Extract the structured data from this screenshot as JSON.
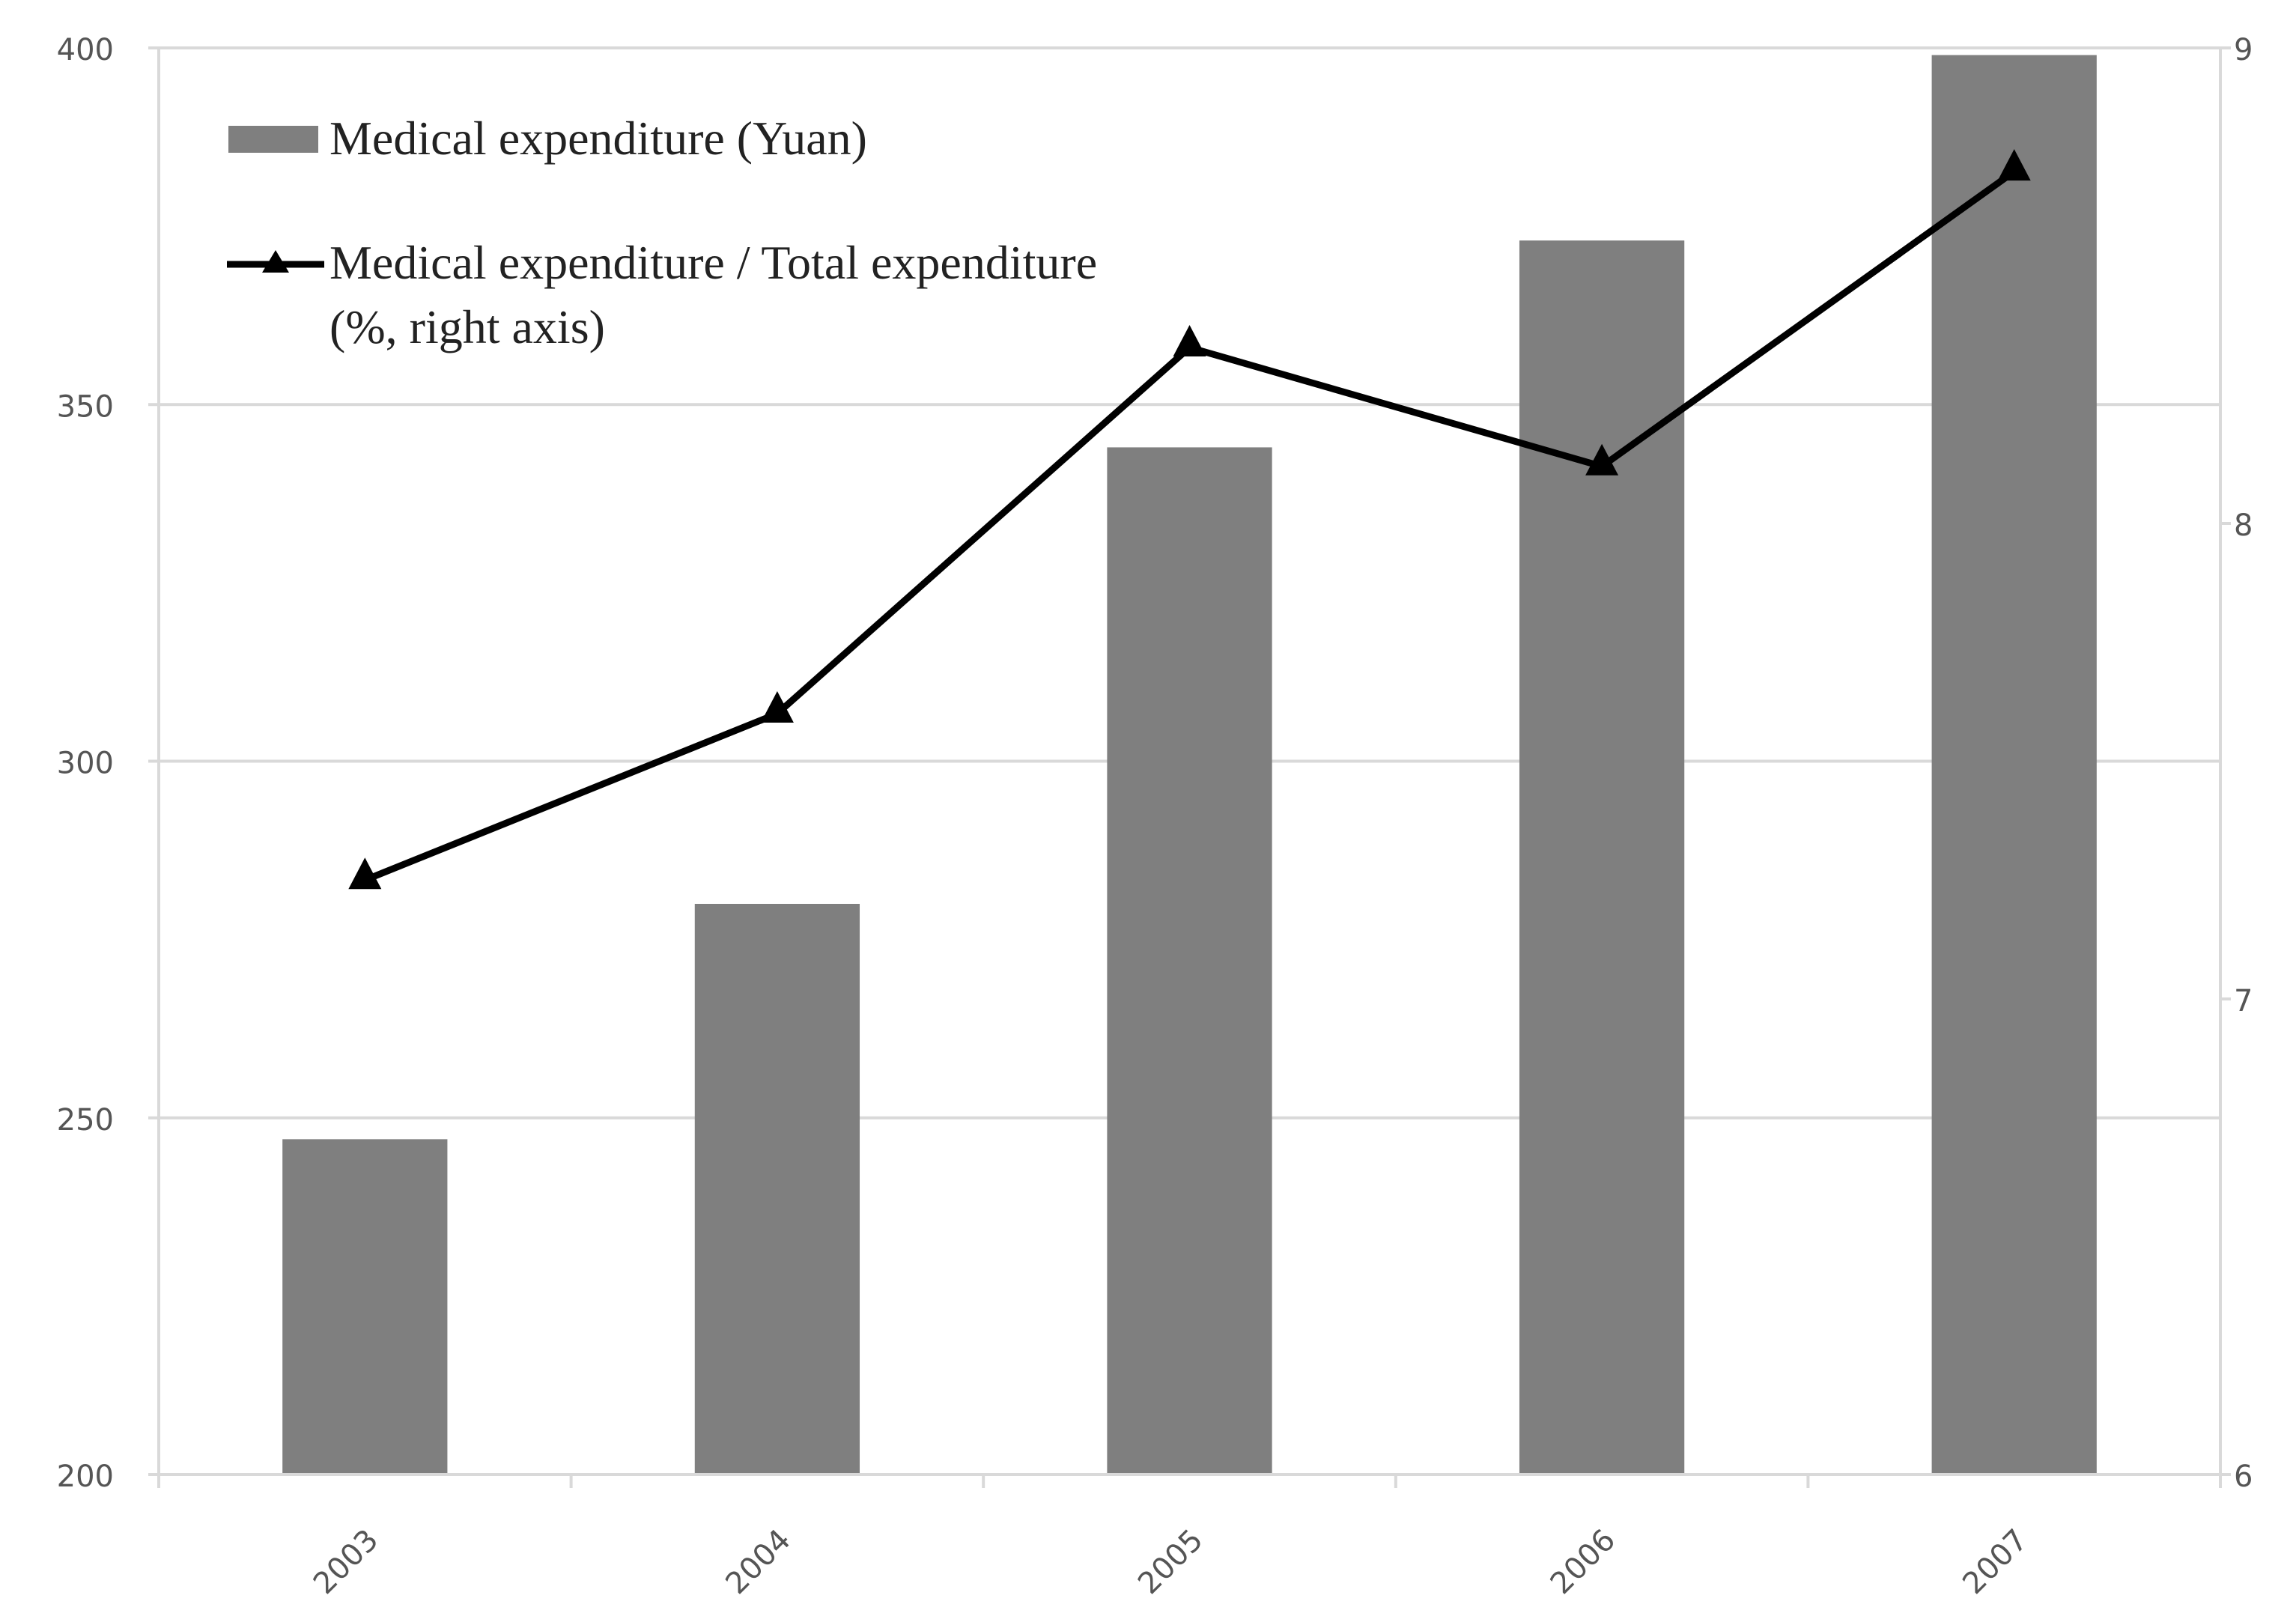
{
  "chart_data": {
    "type": "bar",
    "categories": [
      "2003",
      "2004",
      "2005",
      "2006",
      "2007"
    ],
    "series": [
      {
        "name": "Medical expenditure (Yuan)",
        "type": "bar",
        "axis": "left",
        "values": [
          247,
          280,
          344,
          373,
          399
        ],
        "color": "#7f7f7f"
      },
      {
        "name": "Medical expenditure / Total expenditure",
        "name_line2": "(%, right axis)",
        "type": "line",
        "axis": "right",
        "values": [
          7.25,
          7.6,
          8.37,
          8.12,
          8.74
        ],
        "color": "#000000",
        "marker": "triangle"
      }
    ],
    "y_left": {
      "min": 200,
      "max": 400,
      "ticks": [
        "200",
        "250",
        "300",
        "350",
        "400"
      ]
    },
    "y_right": {
      "min": 6,
      "max": 9,
      "ticks": [
        "6",
        "7",
        "8",
        "9"
      ]
    },
    "grid": true,
    "legend_position": "top-left",
    "gridline_color": "#d9d9d9"
  }
}
